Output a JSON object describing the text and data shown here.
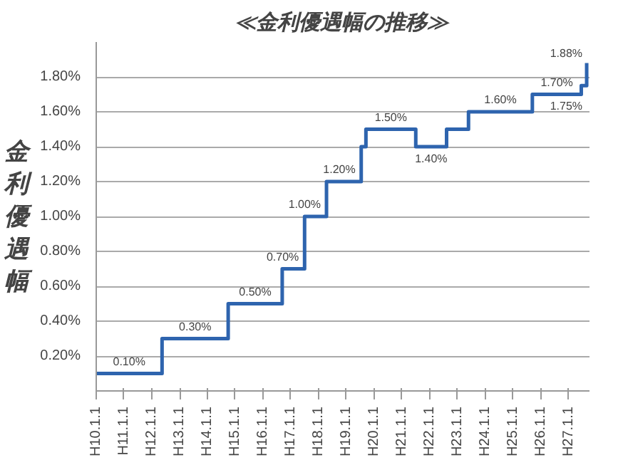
{
  "chart_data": {
    "type": "step",
    "title": "≪金利優遇幅の推移≫",
    "ylabel": "金利優遇幅",
    "x": [
      "1998-01-01",
      "2000-05-15",
      "2002-10-01",
      "2004-09-10",
      "2005-07-01",
      "2006-04-15",
      "2007-07-15",
      "2007-09-15",
      "2009-07-01",
      "2010-08-10",
      "2011-05-25",
      "2013-09-10",
      "2015-06-15",
      "2015-08-25"
    ],
    "series": [
      {
        "color": "#2e64ae",
        "values": [
          0.1,
          0.3,
          0.5,
          0.7,
          1.0,
          1.2,
          1.4,
          1.5,
          1.4,
          1.5,
          1.6,
          1.7,
          1.75,
          1.88
        ],
        "value_labels": [
          "0.10%",
          "0.30%",
          "0.50%",
          "0.70%",
          "1.00%",
          "1.20%",
          null,
          "1.50%",
          "1.40%",
          null,
          "1.60%",
          "1.70%",
          "1.75%",
          "1.88%"
        ]
      }
    ],
    "xlim": [
      "1998-01-01",
      "2015-10-01"
    ],
    "xticks": [
      {
        "value": "1998-01-01",
        "label": "H10.1.1"
      },
      {
        "value": "1999-01-01",
        "label": "H11.1.1"
      },
      {
        "value": "2000-01-01",
        "label": "H12.1.1"
      },
      {
        "value": "2001-01-01",
        "label": "H13.1.1"
      },
      {
        "value": "2002-01-01",
        "label": "H14.1.1"
      },
      {
        "value": "2003-01-01",
        "label": "H15.1.1"
      },
      {
        "value": "2004-01-01",
        "label": "H16.1.1"
      },
      {
        "value": "2005-01-01",
        "label": "H17.1.1"
      },
      {
        "value": "2006-01-01",
        "label": "H18.1.1"
      },
      {
        "value": "2007-01-01",
        "label": "H19.1.1"
      },
      {
        "value": "2008-01-01",
        "label": "H20.1.1"
      },
      {
        "value": "2009-01-01",
        "label": "H21.1.1"
      },
      {
        "value": "2010-01-01",
        "label": "H22.1.1"
      },
      {
        "value": "2011-01-01",
        "label": "H23.1.1"
      },
      {
        "value": "2012-01-01",
        "label": "H24.1.1"
      },
      {
        "value": "2013-01-01",
        "label": "H25.1.1"
      },
      {
        "value": "2014-01-01",
        "label": "H26.1.1"
      },
      {
        "value": "2015-01-01",
        "label": "H27.1.1"
      }
    ],
    "ylim": [
      0,
      2.0
    ],
    "yticks": [
      {
        "value": 0.2,
        "label": "0.20%"
      },
      {
        "value": 0.4,
        "label": "0.40%"
      },
      {
        "value": 0.6,
        "label": "0.60%"
      },
      {
        "value": 0.8,
        "label": "0.80%"
      },
      {
        "value": 1.0,
        "label": "1.00%"
      },
      {
        "value": 1.2,
        "label": "1.20%"
      },
      {
        "value": 1.4,
        "label": "1.40%"
      },
      {
        "value": 1.6,
        "label": "1.60%"
      },
      {
        "value": 1.8,
        "label": "1.80%"
      }
    ],
    "grid": "y"
  }
}
